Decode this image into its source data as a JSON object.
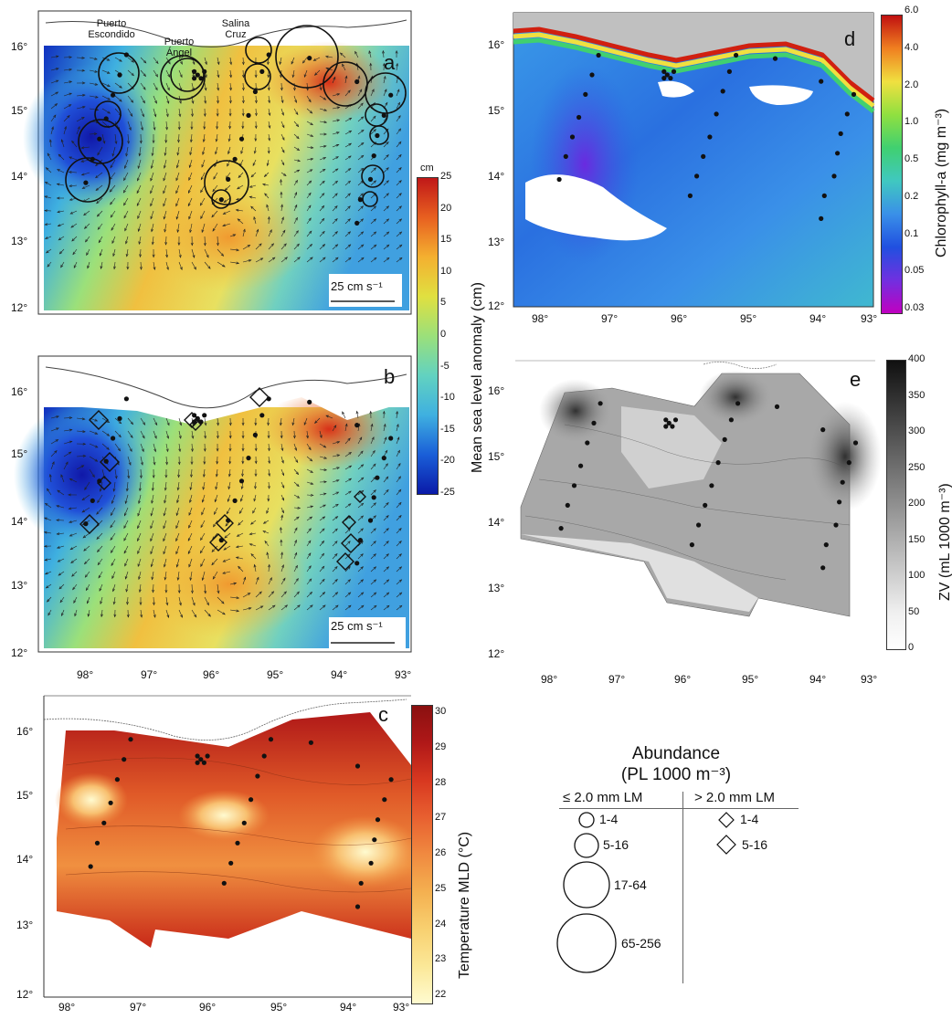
{
  "panels": {
    "a": {
      "letter": "a",
      "places": [
        "Puerto Escondido",
        "Puerto Ángel",
        "Salina Cruz"
      ],
      "scale_label": "25 cm s⁻¹",
      "lat_ticks": [
        "16°",
        "15°",
        "14°",
        "13°",
        "12°"
      ],
      "lon_ticks": [
        "98°",
        "97°",
        "96°",
        "95°",
        "94°",
        "93°"
      ],
      "colorbar": {
        "unit": "cm",
        "title": "Mean sea level anomaly (cm)",
        "ticks": [
          "25",
          "20",
          "15",
          "10",
          "5",
          "0",
          "-5",
          "-10",
          "-15",
          "-20",
          "-25"
        ]
      }
    },
    "b": {
      "letter": "b",
      "scale_label": "25 cm s⁻¹",
      "lat_ticks": [
        "16°",
        "15°",
        "14°",
        "13°",
        "12°"
      ],
      "lon_ticks": [
        "98°",
        "97°",
        "96°",
        "95°",
        "94°",
        "93°"
      ]
    },
    "c": {
      "letter": "c",
      "lat_ticks": [
        "16°",
        "15°",
        "14°",
        "13°",
        "12°"
      ],
      "lon_ticks": [
        "98°",
        "97°",
        "96°",
        "95°",
        "94°",
        "93°"
      ],
      "colorbar": {
        "title": "Temperature MLD (°C)",
        "ticks": [
          "30",
          "29",
          "28",
          "27",
          "26",
          "25",
          "24",
          "23",
          "22"
        ]
      }
    },
    "d": {
      "letter": "d",
      "lat_ticks": [
        "16°",
        "15°",
        "14°",
        "13°",
        "12°"
      ],
      "lon_ticks": [
        "98°",
        "97°",
        "96°",
        "95°",
        "94°",
        "93°"
      ],
      "colorbar": {
        "title": "Chlorophyll-a (mg m⁻³)",
        "ticks": [
          "6.0",
          "4.0",
          "2.0",
          "1.0",
          "0.5",
          "0.2",
          "0.1",
          "0.05",
          "0.03"
        ]
      }
    },
    "e": {
      "letter": "e",
      "lat_ticks": [
        "16°",
        "15°",
        "14°",
        "13°",
        "12°"
      ],
      "lon_ticks": [
        "98°",
        "97°",
        "96°",
        "95°",
        "94°",
        "93°"
      ],
      "colorbar": {
        "title": "ZV (mL 1000 m⁻³)",
        "ticks": [
          "400",
          "350",
          "300",
          "250",
          "200",
          "150",
          "100",
          "50",
          "0"
        ]
      }
    }
  },
  "legend": {
    "title_line1": "Abundance",
    "title_line2": "(PL 1000 m⁻³)",
    "col1_header": "≤ 2.0 mm LM",
    "col2_header": "> 2.0 mm LM",
    "circles": [
      "1-4",
      "5-16",
      "17-64",
      "65-256"
    ],
    "diamonds": [
      "1-4",
      "5-16"
    ]
  },
  "stations": [
    [
      97.8,
      13.95
    ],
    [
      97.7,
      14.3
    ],
    [
      97.6,
      14.6
    ],
    [
      97.5,
      14.9
    ],
    [
      97.4,
      15.25
    ],
    [
      97.3,
      15.55
    ],
    [
      97.2,
      15.85
    ],
    [
      96.2,
      15.6
    ],
    [
      96.15,
      15.55
    ],
    [
      96.1,
      15.5
    ],
    [
      96.05,
      15.6
    ],
    [
      96.2,
      15.5
    ],
    [
      95.8,
      13.7
    ],
    [
      95.7,
      14.0
    ],
    [
      95.6,
      14.3
    ],
    [
      95.5,
      14.6
    ],
    [
      95.4,
      14.95
    ],
    [
      95.3,
      15.3
    ],
    [
      95.2,
      15.6
    ],
    [
      95.1,
      15.85
    ],
    [
      94.5,
      15.8
    ],
    [
      93.8,
      13.35
    ],
    [
      93.75,
      13.7
    ],
    [
      93.6,
      14.0
    ],
    [
      93.55,
      14.35
    ],
    [
      93.5,
      14.65
    ],
    [
      93.4,
      14.95
    ],
    [
      93.3,
      15.25
    ],
    [
      93.8,
      15.45
    ]
  ],
  "colors": {
    "sla_ramp": [
      "#0a1aa8",
      "#1a5fd8",
      "#3fb0e0",
      "#62d2c0",
      "#9be07a",
      "#e0e040",
      "#f4b030",
      "#e86020",
      "#c01818"
    ],
    "temp_ramp": [
      "#fffbd0",
      "#fbe080",
      "#f5b050",
      "#ea7a30",
      "#d84020",
      "#a01010"
    ],
    "chl_ramp": [
      "#c000c0",
      "#7030e0",
      "#2050e0",
      "#3a90e8",
      "#40c8c0",
      "#40d070",
      "#90e040",
      "#f0e040",
      "#f08020",
      "#c01010"
    ],
    "zv_ramp": [
      "#ffffff",
      "#e0e0e0",
      "#c0c0c0",
      "#a0a0a0",
      "#808080",
      "#606060",
      "#303030",
      "#101010"
    ]
  }
}
